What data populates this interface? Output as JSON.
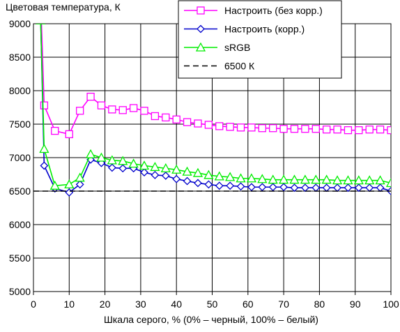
{
  "chart_data": {
    "type": "line",
    "title": "Цветовая температура, К",
    "xlabel": "Шкала серого, % (0% – черный, 100% – белый)",
    "ylabel": "",
    "xlim": [
      0,
      100
    ],
    "ylim": [
      5000,
      9000
    ],
    "xticks": [
      0,
      10,
      20,
      30,
      40,
      50,
      60,
      70,
      80,
      90,
      100
    ],
    "yticks": [
      5000,
      5500,
      6000,
      6500,
      7000,
      7500,
      8000,
      8500,
      9000
    ],
    "grid": true,
    "legend_position": "top-right",
    "series": [
      {
        "name": "Настроить (без корр.)",
        "color": "#ff00ff",
        "marker": "square",
        "line": "solid",
        "x": [
          2,
          3,
          6,
          10,
          13,
          16,
          19,
          22,
          25,
          28,
          31,
          34,
          37,
          40,
          43,
          46,
          49,
          52,
          55,
          58,
          61,
          64,
          67,
          70,
          73,
          76,
          79,
          82,
          85,
          88,
          91,
          94,
          97,
          100
        ],
        "values": [
          9400,
          7780,
          7400,
          7350,
          7700,
          7910,
          7780,
          7720,
          7710,
          7740,
          7700,
          7620,
          7600,
          7570,
          7530,
          7510,
          7490,
          7470,
          7460,
          7450,
          7450,
          7440,
          7440,
          7430,
          7430,
          7430,
          7430,
          7420,
          7420,
          7410,
          7410,
          7420,
          7420,
          7410
        ]
      },
      {
        "name": "Настроить (корр.)",
        "color": "#0000cc",
        "marker": "diamond",
        "line": "solid",
        "x": [
          2,
          3,
          6,
          10,
          13,
          16,
          19,
          22,
          25,
          28,
          31,
          34,
          37,
          40,
          43,
          46,
          49,
          52,
          55,
          58,
          61,
          64,
          67,
          70,
          73,
          76,
          79,
          82,
          85,
          88,
          91,
          94,
          97,
          100
        ],
        "values": [
          9100,
          6880,
          6540,
          6480,
          6600,
          6970,
          6920,
          6850,
          6840,
          6840,
          6780,
          6740,
          6730,
          6680,
          6650,
          6620,
          6600,
          6580,
          6580,
          6570,
          6560,
          6560,
          6560,
          6560,
          6550,
          6550,
          6550,
          6550,
          6550,
          6550,
          6550,
          6550,
          6550,
          6500
        ]
      },
      {
        "name": "sRGB",
        "color": "#00ee00",
        "marker": "triangle",
        "line": "solid",
        "x": [
          2,
          3,
          6,
          10,
          13,
          16,
          19,
          22,
          25,
          28,
          31,
          34,
          37,
          40,
          43,
          46,
          49,
          52,
          55,
          58,
          61,
          64,
          67,
          70,
          73,
          76,
          79,
          82,
          85,
          88,
          91,
          94,
          97,
          100
        ],
        "values": [
          9050,
          7130,
          6580,
          6600,
          6700,
          7050,
          7000,
          6960,
          6950,
          6910,
          6880,
          6860,
          6840,
          6820,
          6790,
          6770,
          6740,
          6720,
          6710,
          6690,
          6690,
          6680,
          6670,
          6670,
          6670,
          6670,
          6670,
          6670,
          6660,
          6660,
          6660,
          6660,
          6660,
          6620
        ]
      },
      {
        "name": "6500 К",
        "color": "#000000",
        "marker": "none",
        "line": "dashed",
        "x": [
          0,
          100
        ],
        "values": [
          6500,
          6500
        ]
      }
    ]
  }
}
